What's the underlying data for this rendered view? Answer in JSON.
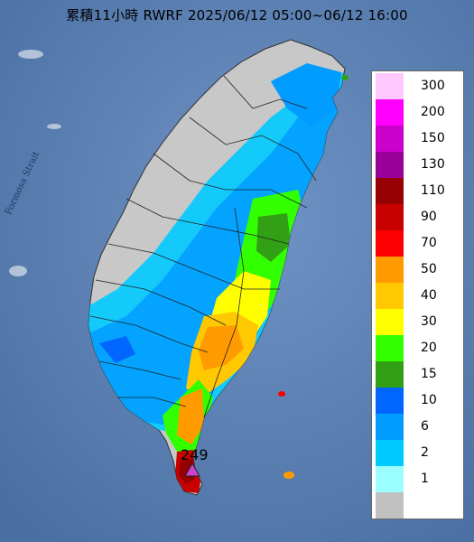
{
  "title": "累積11小時 RWRF 2025/06/12 05:00~06/12 16:00",
  "sea_label": "Formosa Strait",
  "max_marker": {
    "value_label": "249",
    "symbol": "triangle-marker"
  },
  "legend": {
    "items": [
      {
        "label": "300",
        "color": "#ffc8ff"
      },
      {
        "label": "200",
        "color": "#ff00ff"
      },
      {
        "label": "150",
        "color": "#cc00cc"
      },
      {
        "label": "130",
        "color": "#990099"
      },
      {
        "label": "110",
        "color": "#960000"
      },
      {
        "label": "90",
        "color": "#c80000"
      },
      {
        "label": "70",
        "color": "#fb0000"
      },
      {
        "label": "50",
        "color": "#ff9b00"
      },
      {
        "label": "40",
        "color": "#ffc800"
      },
      {
        "label": "30",
        "color": "#ffff00"
      },
      {
        "label": "20",
        "color": "#32ff00"
      },
      {
        "label": "15",
        "color": "#32a014"
      },
      {
        "label": "10",
        "color": "#0066ff"
      },
      {
        "label": "6",
        "color": "#009cff"
      },
      {
        "label": "2",
        "color": "#00caff"
      },
      {
        "label": "1",
        "color": "#9bffff"
      },
      {
        "label": "",
        "color": "#c1c1c1"
      }
    ]
  },
  "colors": {
    "sea": "#5a7fb0",
    "land_dry": "#c8c8c8",
    "county_border": "#222222"
  }
}
